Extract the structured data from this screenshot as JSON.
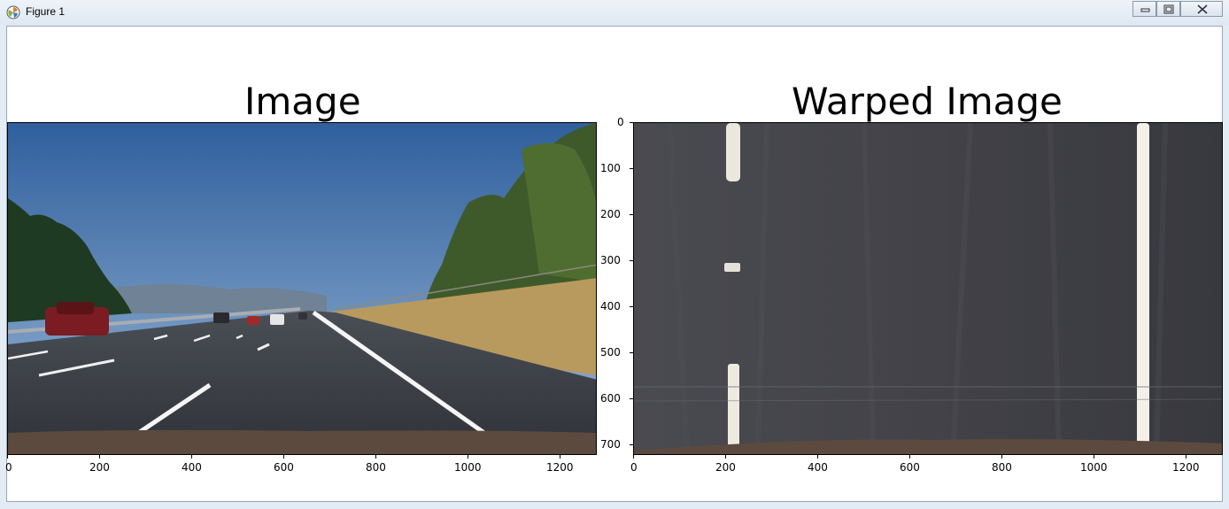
{
  "window": {
    "title": "Figure 1",
    "icon": "matplotlib-icon",
    "controls": [
      "minimize-icon",
      "restore-icon",
      "close-icon"
    ]
  },
  "figure": {
    "panels": [
      {
        "title": "Image",
        "content": "road-scene-photo",
        "x_ticks": [
          "0",
          "200",
          "400",
          "600",
          "800",
          "1000",
          "1200"
        ],
        "y_ticks": []
      },
      {
        "title": "Warped Image",
        "content": "birds-eye-lane-view",
        "x_ticks": [
          "0",
          "200",
          "400",
          "600",
          "800",
          "1000",
          "1200"
        ],
        "y_ticks": [
          "0",
          "100",
          "200",
          "300",
          "400",
          "500",
          "600",
          "700"
        ]
      }
    ]
  }
}
